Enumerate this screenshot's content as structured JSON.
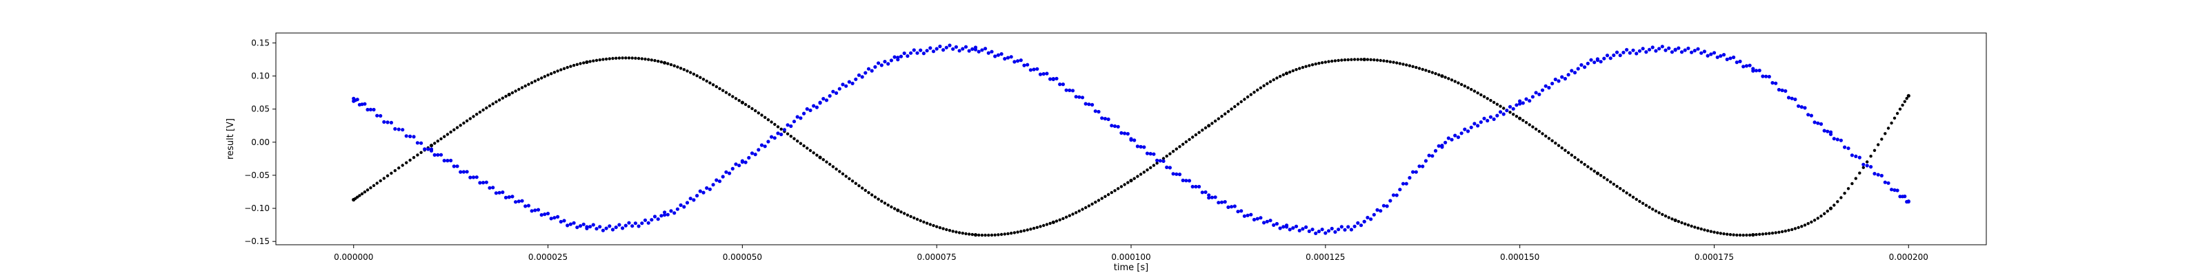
{
  "chart_data": {
    "type": "scatter",
    "title": "",
    "xlabel": "time [s]",
    "ylabel": "result [V]",
    "xlim": [
      -1e-05,
      0.00021
    ],
    "ylim": [
      -0.155,
      0.165
    ],
    "x_tick_values": [
      0.0,
      2.5e-05,
      5e-05,
      7.5e-05,
      0.0001,
      0.000125,
      0.00015,
      0.000175,
      0.0002
    ],
    "x_tick_labels": [
      "0.000000",
      "0.000025",
      "0.000050",
      "0.000075",
      "0.000100",
      "0.000125",
      "0.000150",
      "0.000175",
      "0.000200"
    ],
    "y_tick_values": [
      0.15,
      0.1,
      0.05,
      0.0,
      -0.05,
      -0.1,
      -0.15
    ],
    "y_tick_labels": [
      "0.15",
      "0.10",
      "0.05",
      "0.00",
      "−0.05",
      "−0.10",
      "−0.15"
    ],
    "grid": false,
    "legend": "none",
    "series": [
      {
        "color": "#000000",
        "x": [
          0.0,
          1e-05,
          2e-05,
          3e-05,
          4e-05,
          5e-05,
          6e-05,
          7e-05,
          8e-05,
          9e-05,
          0.0001,
          0.00011,
          0.00012,
          0.00013,
          0.00014,
          0.00015,
          0.00016,
          0.00017,
          0.00018,
          0.00019,
          0.0002
        ],
        "y": [
          -0.087,
          -0.005,
          0.072,
          0.121,
          0.12,
          0.06,
          -0.023,
          -0.103,
          -0.14,
          -0.121,
          -0.058,
          0.025,
          0.104,
          0.125,
          0.1,
          0.036,
          -0.047,
          -0.118,
          -0.14,
          -0.1,
          0.07
        ]
      },
      {
        "color": "#0000ee",
        "x": [
          0.0,
          1e-05,
          2e-05,
          3e-05,
          4e-05,
          5e-05,
          6e-05,
          7e-05,
          8e-05,
          9e-05,
          0.0001,
          0.00011,
          0.00012,
          0.00013,
          0.00014,
          0.00015,
          0.00016,
          0.00017,
          0.00018,
          0.00019,
          0.0002
        ],
        "y": [
          0.066,
          -0.013,
          -0.083,
          -0.128,
          -0.11,
          -0.03,
          0.06,
          0.128,
          0.14,
          0.095,
          0.005,
          -0.08,
          -0.128,
          -0.12,
          -0.005,
          0.058,
          0.124,
          0.14,
          0.111,
          0.012,
          -0.09
        ]
      }
    ]
  }
}
